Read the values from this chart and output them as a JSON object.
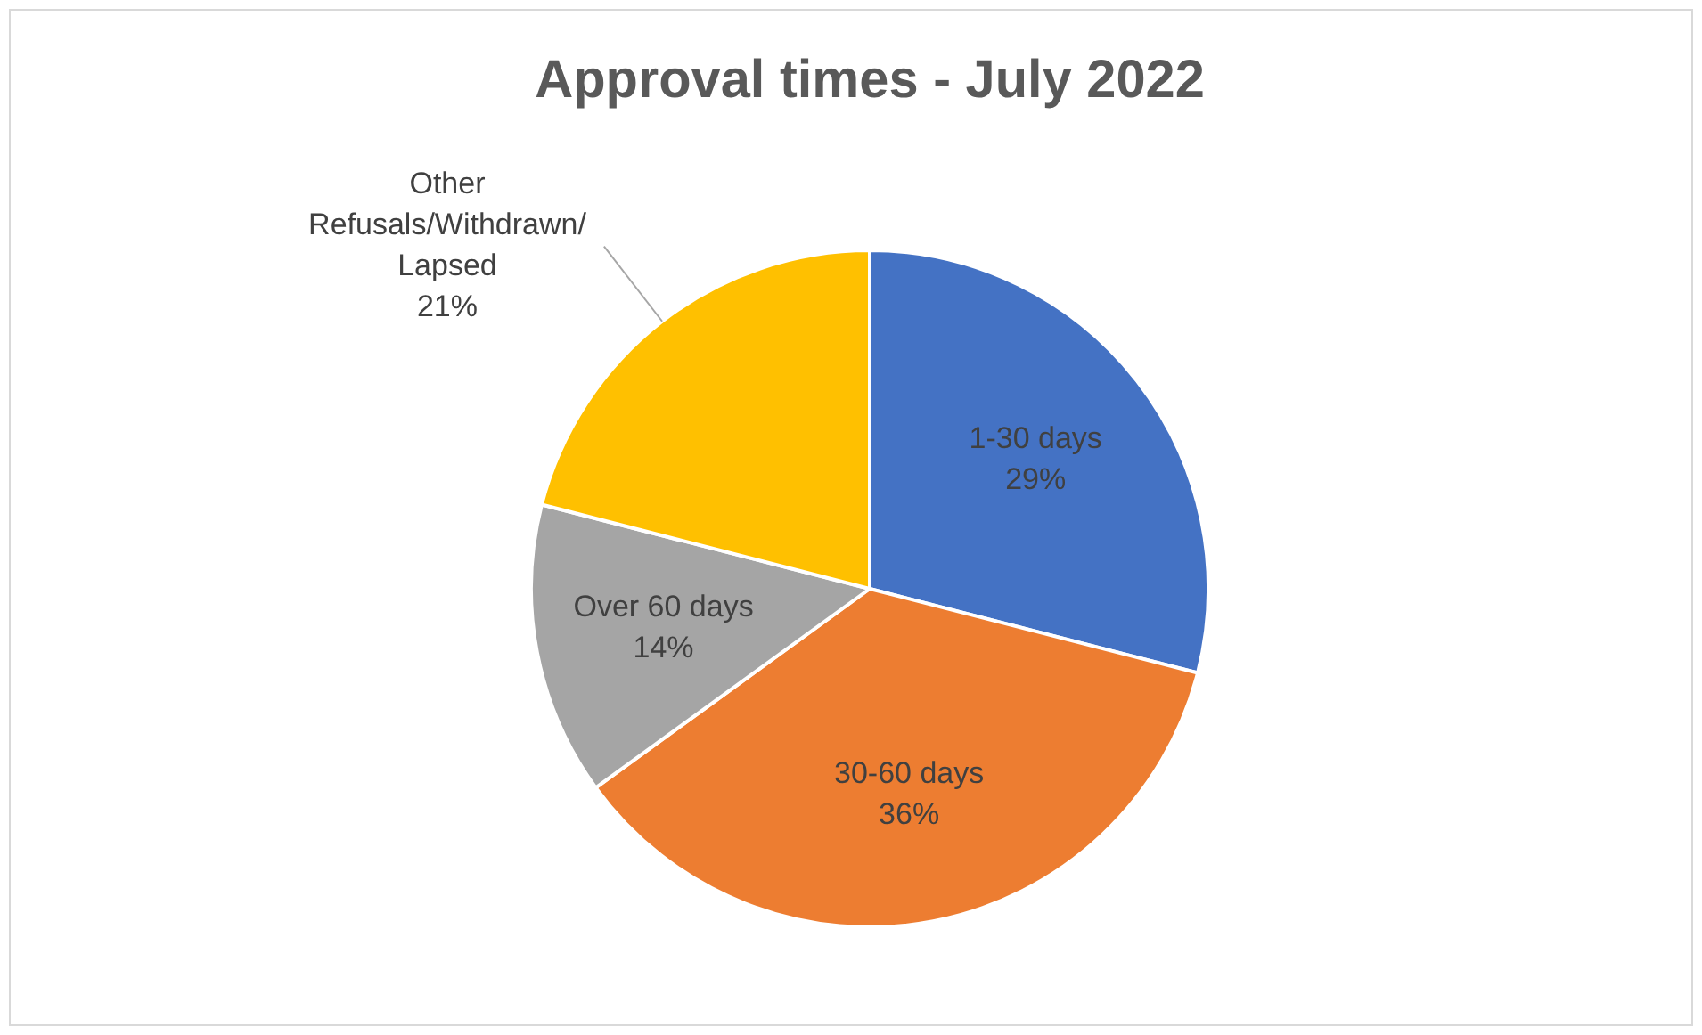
{
  "chart_data": {
    "type": "pie",
    "title": "Approval times - July 2022",
    "categories": [
      "1-30 days",
      "30-60 days",
      "Over 60 days",
      "Other Refusals/Withdrawn/ Lapsed"
    ],
    "values": [
      29,
      36,
      14,
      21
    ],
    "value_labels": [
      "29%",
      "36%",
      "14%",
      "21%"
    ],
    "colors": [
      "#4472c4",
      "#ed7d31",
      "#a5a5a5",
      "#ffc000"
    ],
    "legend": false
  }
}
